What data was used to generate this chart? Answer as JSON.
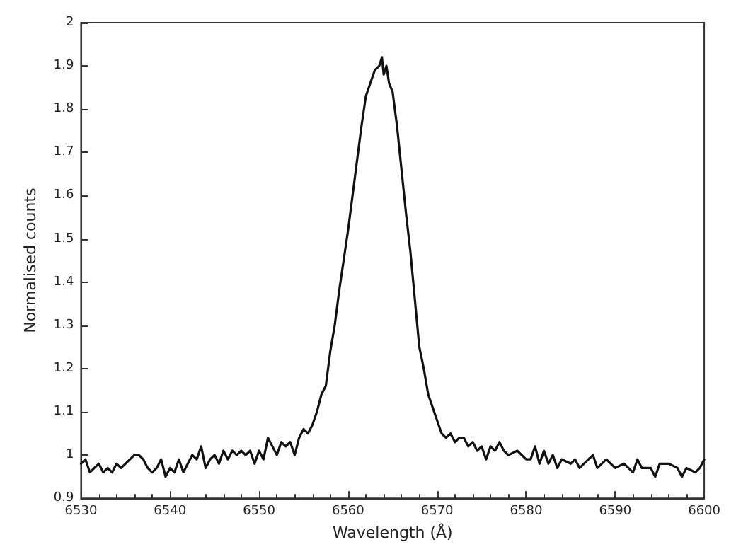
{
  "chart_data": {
    "type": "line",
    "xlabel": "Wavelength (Å)",
    "ylabel": "Normalised counts",
    "xlim": [
      6530,
      6600
    ],
    "xticks": [
      6530,
      6540,
      6550,
      6560,
      6570,
      6580,
      6590,
      6600
    ],
    "ylim": [
      0.9,
      2
    ],
    "yticks": [
      0.9,
      1,
      1.1,
      1.2,
      1.3,
      1.4,
      1.5,
      1.6,
      1.7,
      1.8,
      1.9,
      2
    ],
    "grid": false,
    "marker": "none",
    "line_style": "solid",
    "x": [
      6530,
      6530.5,
      6531,
      6531.5,
      6532,
      6532.5,
      6533,
      6533.5,
      6534,
      6534.5,
      6535,
      6535.5,
      6536,
      6536.5,
      6537,
      6537.5,
      6538,
      6538.5,
      6539,
      6539.5,
      6540,
      6540.5,
      6541,
      6541.5,
      6542,
      6542.5,
      6543,
      6543.5,
      6544,
      6544.5,
      6545,
      6545.5,
      6546,
      6546.5,
      6547,
      6547.5,
      6548,
      6548.5,
      6549,
      6549.5,
      6550,
      6550.5,
      6551,
      6551.5,
      6552,
      6552.5,
      6553,
      6553.5,
      6554,
      6554.5,
      6555,
      6555.5,
      6556,
      6556.5,
      6557,
      6557.5,
      6558,
      6558.5,
      6559,
      6559.5,
      6560,
      6560.5,
      6561,
      6561.5,
      6562,
      6562.5,
      6563,
      6563.5,
      6563.8,
      6564,
      6564.3,
      6564.6,
      6565,
      6565.5,
      6566,
      6566.5,
      6567,
      6567.5,
      6568,
      6568.5,
      6569,
      6569.5,
      6570,
      6570.5,
      6571,
      6571.5,
      6572,
      6572.5,
      6573,
      6573.5,
      6574,
      6574.5,
      6575,
      6575.5,
      6576,
      6576.5,
      6577,
      6577.5,
      6578,
      6579,
      6580,
      6580.5,
      6581,
      6581.5,
      6582,
      6582.5,
      6583,
      6583.5,
      6584,
      6585,
      6585.5,
      6586,
      6587,
      6587.5,
      6588,
      6589,
      6590,
      6591,
      6592,
      6592.5,
      6593,
      6594,
      6594.5,
      6595,
      6596,
      6597,
      6597.5,
      6598,
      6599,
      6599.5,
      6600
    ],
    "series": [
      {
        "color": "#111111",
        "values": [
          0.98,
          0.99,
          0.96,
          0.97,
          0.98,
          0.96,
          0.97,
          0.96,
          0.98,
          0.97,
          0.98,
          0.99,
          1.0,
          1.0,
          0.99,
          0.97,
          0.96,
          0.97,
          0.99,
          0.95,
          0.97,
          0.96,
          0.99,
          0.96,
          0.98,
          1.0,
          0.99,
          1.02,
          0.97,
          0.99,
          1.0,
          0.98,
          1.01,
          0.99,
          1.01,
          1.0,
          1.01,
          1.0,
          1.01,
          0.98,
          1.01,
          0.99,
          1.04,
          1.02,
          1.0,
          1.03,
          1.02,
          1.03,
          1.0,
          1.04,
          1.06,
          1.05,
          1.07,
          1.1,
          1.14,
          1.16,
          1.24,
          1.3,
          1.38,
          1.45,
          1.52,
          1.6,
          1.68,
          1.76,
          1.83,
          1.86,
          1.89,
          1.9,
          1.92,
          1.88,
          1.9,
          1.86,
          1.84,
          1.76,
          1.66,
          1.56,
          1.47,
          1.36,
          1.25,
          1.2,
          1.14,
          1.11,
          1.08,
          1.05,
          1.04,
          1.05,
          1.03,
          1.04,
          1.04,
          1.02,
          1.03,
          1.01,
          1.02,
          0.99,
          1.02,
          1.01,
          1.03,
          1.01,
          1.0,
          1.01,
          0.99,
          0.99,
          1.02,
          0.98,
          1.01,
          0.98,
          1.0,
          0.97,
          0.99,
          0.98,
          0.99,
          0.97,
          0.99,
          1.0,
          0.97,
          0.99,
          0.97,
          0.98,
          0.96,
          0.99,
          0.97,
          0.97,
          0.95,
          0.98,
          0.98,
          0.97,
          0.95,
          0.97,
          0.96,
          0.97,
          0.99
        ]
      }
    ]
  }
}
